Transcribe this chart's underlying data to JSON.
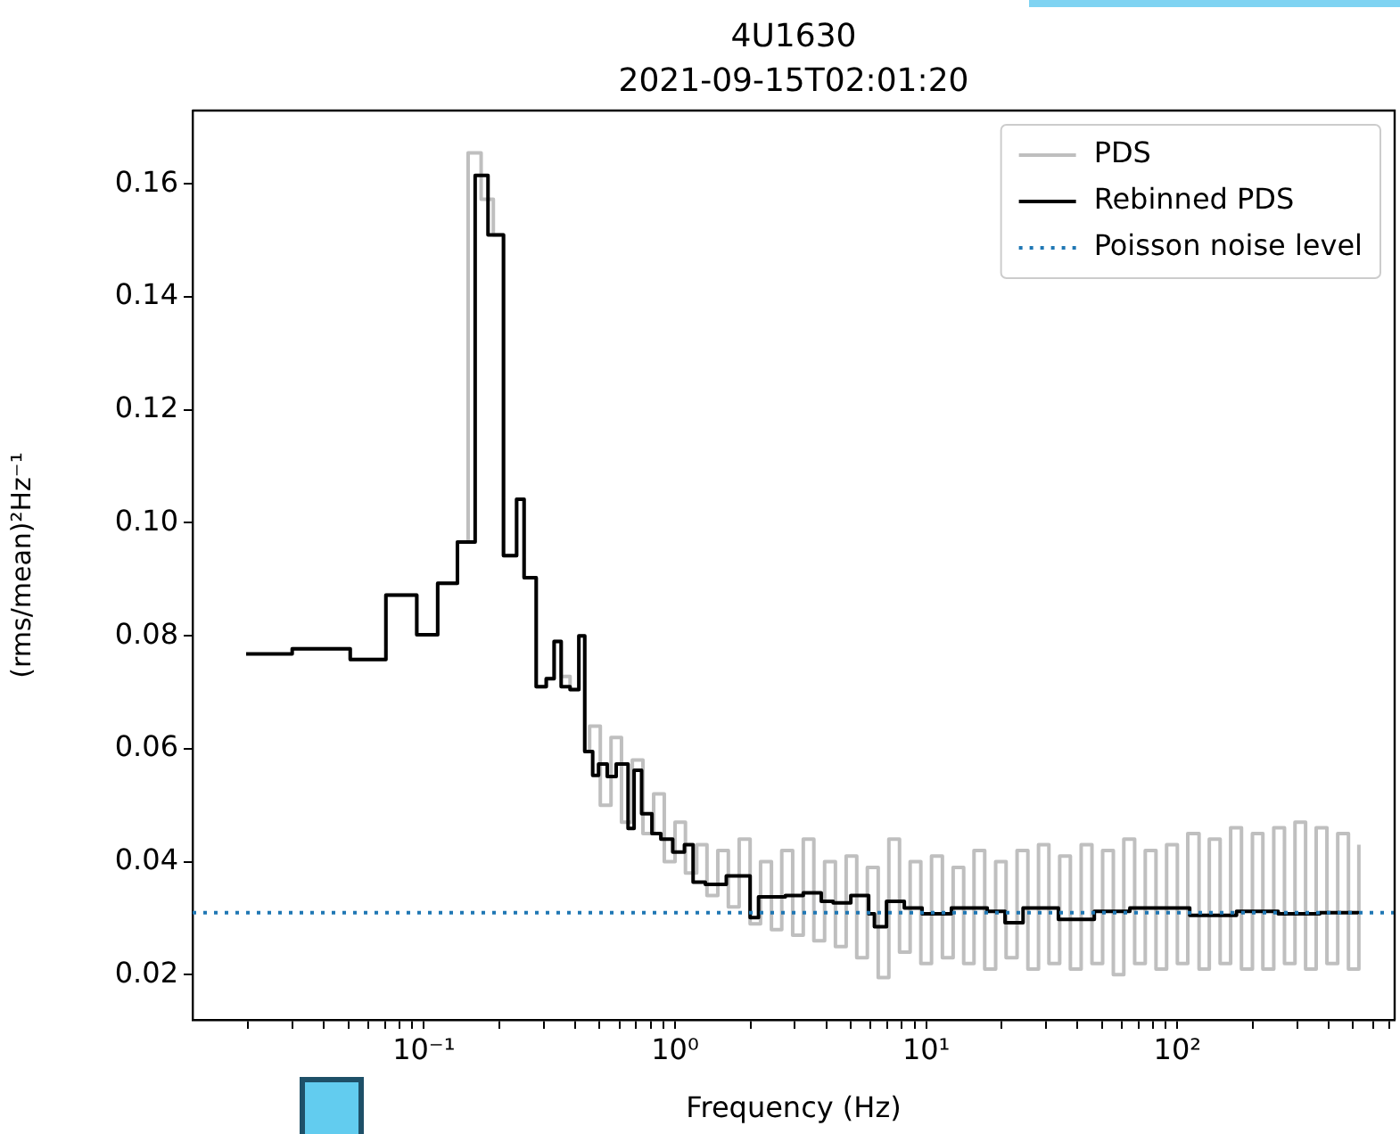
{
  "chart_data": {
    "type": "step",
    "title": "4U1630",
    "subtitle": "2021-09-15T02:01:20",
    "xlabel": "Frequency (Hz)",
    "ylabel": "(rms/mean)²Hz⁻¹",
    "log": "x",
    "grid": false,
    "legend": "top right",
    "line_style": "solid",
    "marker": "none",
    "xlim": [
      0.012,
      733
    ],
    "ylim": [
      0.012,
      0.173
    ],
    "xticks": [
      {
        "value": 0.02,
        "label": null
      },
      {
        "value": 0.03,
        "label": null
      },
      {
        "value": 0.04,
        "label": null
      },
      {
        "value": 0.05,
        "label": null
      },
      {
        "value": 0.06,
        "label": null
      },
      {
        "value": 0.07,
        "label": null
      },
      {
        "value": 0.08,
        "label": null
      },
      {
        "value": 0.09,
        "label": null
      },
      {
        "value": 0.1,
        "label": "10⁻¹"
      },
      {
        "value": 0.2,
        "label": null
      },
      {
        "value": 0.3,
        "label": null
      },
      {
        "value": 0.4,
        "label": null
      },
      {
        "value": 0.5,
        "label": null
      },
      {
        "value": 0.6,
        "label": null
      },
      {
        "value": 0.7,
        "label": null
      },
      {
        "value": 0.8,
        "label": null
      },
      {
        "value": 0.9,
        "label": null
      },
      {
        "value": 1,
        "label": "10⁰"
      },
      {
        "value": 2,
        "label": null
      },
      {
        "value": 3,
        "label": null
      },
      {
        "value": 4,
        "label": null
      },
      {
        "value": 5,
        "label": null
      },
      {
        "value": 6,
        "label": null
      },
      {
        "value": 7,
        "label": null
      },
      {
        "value": 8,
        "label": null
      },
      {
        "value": 9,
        "label": null
      },
      {
        "value": 10,
        "label": "10¹"
      },
      {
        "value": 20,
        "label": null
      },
      {
        "value": 30,
        "label": null
      },
      {
        "value": 40,
        "label": null
      },
      {
        "value": 50,
        "label": null
      },
      {
        "value": 60,
        "label": null
      },
      {
        "value": 70,
        "label": null
      },
      {
        "value": 80,
        "label": null
      },
      {
        "value": 90,
        "label": null
      },
      {
        "value": 100,
        "label": "10²"
      },
      {
        "value": 200,
        "label": null
      },
      {
        "value": 300,
        "label": null
      },
      {
        "value": 400,
        "label": null
      },
      {
        "value": 500,
        "label": null
      },
      {
        "value": 600,
        "label": null
      },
      {
        "value": 700,
        "label": null
      }
    ],
    "yticks": [
      0.02,
      0.04,
      0.06,
      0.08,
      {
        "value": 0.1,
        "label": "0.10"
      },
      0.12,
      0.14,
      0.16
    ],
    "series": [
      {
        "name": "PDS",
        "color": "#bfbfbf",
        "x": [
          0.0299,
          0.0509,
          0.0706,
          0.0937,
          0.1135,
          0.136,
          0.15,
          0.169,
          0.189,
          0.2075,
          0.234,
          0.2506,
          0.28,
          0.307,
          0.33,
          0.352,
          0.382,
          0.414,
          0.437,
          0.457,
          0.504,
          0.556,
          0.612,
          0.676,
          0.745,
          0.822,
          0.906,
          1.0,
          1.1,
          1.22,
          1.34,
          1.48,
          1.63,
          1.8,
          1.99,
          2.19,
          2.42,
          2.66,
          2.94,
          3.24,
          3.57,
          3.94,
          4.35,
          4.8,
          5.29,
          5.83,
          6.44,
          7.1,
          7.83,
          8.63,
          9.52,
          10.5,
          11.6,
          12.8,
          14.1,
          15.5,
          17.1,
          18.9,
          20.8,
          23.0,
          25.4,
          28.0,
          30.8,
          34.0,
          37.5,
          41.4,
          45.7,
          50.4,
          55.6,
          61.2,
          67.6,
          74.5,
          82.2,
          90.6,
          100,
          110,
          122,
          134,
          148,
          163,
          180,
          199,
          219,
          242,
          267,
          294,
          324,
          357,
          394,
          435,
          480,
          528
        ],
        "values": [
          0.0777,
          0.0758,
          0.0872,
          0.0802,
          0.0893,
          0.0966,
          0.1655,
          0.1573,
          0.151,
          0.0942,
          0.1042,
          0.0903,
          0.071,
          0.0724,
          0.079,
          0.0728,
          0.0705,
          0.08,
          0.0595,
          0.064,
          0.05,
          0.062,
          0.047,
          0.058,
          0.045,
          0.052,
          0.04,
          0.047,
          0.038,
          0.043,
          0.034,
          0.042,
          0.032,
          0.044,
          0.029,
          0.04,
          0.028,
          0.042,
          0.027,
          0.044,
          0.026,
          0.04,
          0.025,
          0.041,
          0.023,
          0.039,
          0.0195,
          0.044,
          0.024,
          0.04,
          0.022,
          0.041,
          0.023,
          0.039,
          0.022,
          0.042,
          0.021,
          0.04,
          0.023,
          0.042,
          0.021,
          0.043,
          0.022,
          0.041,
          0.021,
          0.043,
          0.022,
          0.042,
          0.02,
          0.044,
          0.022,
          0.042,
          0.021,
          0.043,
          0.022,
          0.045,
          0.021,
          0.044,
          0.022,
          0.046,
          0.021,
          0.045,
          0.021,
          0.046,
          0.022,
          0.047,
          0.021,
          0.046,
          0.022,
          0.045,
          0.021,
          0.043
        ]
      },
      {
        "name": "Rebinned PDS",
        "color": "#000000",
        "x": [
          0.0196,
          0.0299,
          0.0509,
          0.0706,
          0.0937,
          0.1135,
          0.136,
          0.16,
          0.18,
          0.2075,
          0.234,
          0.2506,
          0.28,
          0.307,
          0.33,
          0.352,
          0.382,
          0.414,
          0.437,
          0.47,
          0.496,
          0.537,
          0.583,
          0.65,
          0.687,
          0.736,
          0.809,
          0.878,
          0.979,
          1.09,
          1.18,
          1.32,
          1.6,
          1.99,
          2.15,
          2.75,
          3.24,
          3.82,
          4.26,
          5.01,
          5.9,
          6.22,
          6.95,
          8.18,
          9.63,
          12.6,
          17.5,
          20.6,
          24.3,
          33.6,
          46.7,
          64.7,
          112,
          172,
          252,
          369,
          526
        ],
        "values": [
          0.0768,
          0.0777,
          0.0758,
          0.0872,
          0.0802,
          0.0893,
          0.0966,
          0.1615,
          0.151,
          0.0942,
          0.1042,
          0.0903,
          0.071,
          0.0724,
          0.079,
          0.071,
          0.0705,
          0.08,
          0.0595,
          0.0553,
          0.0573,
          0.0551,
          0.0573,
          0.0459,
          0.0562,
          0.0485,
          0.045,
          0.044,
          0.0417,
          0.043,
          0.0364,
          0.036,
          0.0375,
          0.0301,
          0.0338,
          0.034,
          0.0345,
          0.033,
          0.0327,
          0.034,
          0.0308,
          0.0285,
          0.033,
          0.0318,
          0.0308,
          0.0318,
          0.0312,
          0.0292,
          0.0318,
          0.0298,
          0.0312,
          0.0318,
          0.0305,
          0.0312,
          0.0308,
          0.031,
          0.0308
        ]
      }
    ],
    "ref_lines": [
      {
        "axis": "y",
        "value": 0.031,
        "label": "Poisson noise level",
        "color": "#1f77b4",
        "line_style": "dotted"
      }
    ]
  }
}
